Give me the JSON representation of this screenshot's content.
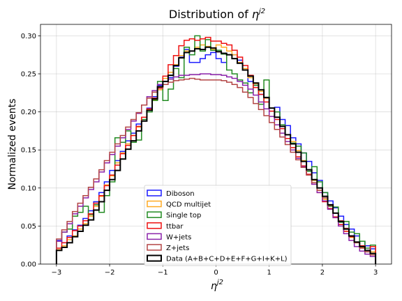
{
  "chart_data": {
    "type": "line",
    "title_text": "Distribution of ",
    "title_symbol": "η",
    "title_sup": "j2",
    "xlabel_symbol": "η",
    "xlabel_sup": "j2",
    "ylabel": "Normalized events",
    "xlim": [
      -3.3,
      3.3
    ],
    "ylim": [
      0.0,
      0.315
    ],
    "xticks": [
      -3,
      -2,
      -1,
      0,
      1,
      2,
      3
    ],
    "yticks": [
      0.0,
      0.05,
      0.1,
      0.15,
      0.2,
      0.25,
      0.3
    ],
    "ytick_labels": [
      "0.00",
      "0.05",
      "0.10",
      "0.15",
      "0.20",
      "0.25",
      "0.30"
    ],
    "grid": true,
    "legend_position": "lower center",
    "bin_edges_start": -3.0,
    "bin_width": 0.1,
    "series": [
      {
        "name": "Diboson",
        "color": "#1a1aff",
        "values": [
          0.031,
          0.028,
          0.037,
          0.045,
          0.051,
          0.06,
          0.07,
          0.082,
          0.094,
          0.108,
          0.123,
          0.136,
          0.148,
          0.162,
          0.172,
          0.184,
          0.193,
          0.205,
          0.22,
          0.235,
          0.24,
          0.245,
          0.26,
          0.272,
          0.282,
          0.265,
          0.265,
          0.27,
          0.275,
          0.278,
          0.27,
          0.265,
          0.275,
          0.275,
          0.268,
          0.255,
          0.24,
          0.235,
          0.223,
          0.218,
          0.205,
          0.206,
          0.19,
          0.182,
          0.166,
          0.158,
          0.146,
          0.135,
          0.12,
          0.11,
          0.094,
          0.083,
          0.074,
          0.063,
          0.052,
          0.046,
          0.037,
          0.03,
          0.024,
          0.02
        ]
      },
      {
        "name": "QCD multijet",
        "color": "#ffaa22",
        "values": [
          0.019,
          0.024,
          0.032,
          0.037,
          0.046,
          0.053,
          0.063,
          0.076,
          0.089,
          0.104,
          0.116,
          0.133,
          0.146,
          0.158,
          0.169,
          0.18,
          0.193,
          0.203,
          0.216,
          0.229,
          0.244,
          0.252,
          0.262,
          0.274,
          0.28,
          0.28,
          0.285,
          0.288,
          0.286,
          0.282,
          0.288,
          0.285,
          0.28,
          0.275,
          0.265,
          0.257,
          0.245,
          0.237,
          0.227,
          0.218,
          0.205,
          0.193,
          0.181,
          0.17,
          0.161,
          0.149,
          0.136,
          0.122,
          0.11,
          0.097,
          0.085,
          0.073,
          0.061,
          0.052,
          0.043,
          0.035,
          0.028,
          0.022,
          0.018,
          0.016
        ]
      },
      {
        "name": "Single top",
        "color": "#228b22",
        "values": [
          0.03,
          0.042,
          0.046,
          0.063,
          0.068,
          0.076,
          0.065,
          0.078,
          0.068,
          0.09,
          0.108,
          0.166,
          0.16,
          0.175,
          0.16,
          0.163,
          0.19,
          0.2,
          0.215,
          0.24,
          0.215,
          0.23,
          0.257,
          0.245,
          0.285,
          0.275,
          0.3,
          0.28,
          0.295,
          0.281,
          0.281,
          0.276,
          0.255,
          0.25,
          0.242,
          0.238,
          0.225,
          0.235,
          0.21,
          0.242,
          0.205,
          0.2,
          0.183,
          0.165,
          0.159,
          0.155,
          0.146,
          0.122,
          0.128,
          0.108,
          0.094,
          0.076,
          0.075,
          0.055,
          0.056,
          0.042,
          0.04,
          0.03,
          0.021,
          0.025
        ]
      },
      {
        "name": "ttbar",
        "color": "#ee1111",
        "values": [
          0.021,
          0.028,
          0.035,
          0.044,
          0.05,
          0.057,
          0.066,
          0.08,
          0.09,
          0.103,
          0.117,
          0.13,
          0.145,
          0.156,
          0.169,
          0.181,
          0.193,
          0.204,
          0.218,
          0.231,
          0.247,
          0.262,
          0.274,
          0.287,
          0.294,
          0.296,
          0.294,
          0.296,
          0.298,
          0.293,
          0.293,
          0.29,
          0.288,
          0.281,
          0.272,
          0.261,
          0.248,
          0.232,
          0.223,
          0.213,
          0.201,
          0.19,
          0.178,
          0.165,
          0.153,
          0.141,
          0.129,
          0.118,
          0.105,
          0.094,
          0.082,
          0.073,
          0.062,
          0.052,
          0.043,
          0.036,
          0.029,
          0.024,
          0.018,
          0.023
        ]
      },
      {
        "name": "W+jets",
        "color": "#8a22aa",
        "values": [
          0.03,
          0.042,
          0.053,
          0.066,
          0.076,
          0.087,
          0.098,
          0.108,
          0.121,
          0.133,
          0.144,
          0.155,
          0.166,
          0.177,
          0.188,
          0.198,
          0.209,
          0.22,
          0.228,
          0.236,
          0.24,
          0.243,
          0.246,
          0.248,
          0.248,
          0.249,
          0.249,
          0.25,
          0.25,
          0.249,
          0.249,
          0.248,
          0.246,
          0.244,
          0.24,
          0.235,
          0.23,
          0.222,
          0.213,
          0.204,
          0.194,
          0.183,
          0.172,
          0.161,
          0.15,
          0.139,
          0.128,
          0.117,
          0.105,
          0.094,
          0.083,
          0.072,
          0.061,
          0.05,
          0.04,
          0.031,
          0.023,
          0.017,
          0.013,
          0.01
        ]
      },
      {
        "name": "Z+jets",
        "color": "#b34545",
        "values": [
          0.033,
          0.045,
          0.056,
          0.069,
          0.08,
          0.09,
          0.101,
          0.112,
          0.124,
          0.136,
          0.147,
          0.158,
          0.169,
          0.18,
          0.19,
          0.199,
          0.209,
          0.218,
          0.226,
          0.232,
          0.236,
          0.239,
          0.241,
          0.242,
          0.243,
          0.244,
          0.243,
          0.242,
          0.242,
          0.242,
          0.242,
          0.241,
          0.239,
          0.236,
          0.232,
          0.226,
          0.219,
          0.211,
          0.203,
          0.195,
          0.186,
          0.177,
          0.167,
          0.157,
          0.147,
          0.137,
          0.127,
          0.117,
          0.107,
          0.097,
          0.087,
          0.077,
          0.067,
          0.057,
          0.047,
          0.037,
          0.028,
          0.021,
          0.016,
          0.012
        ]
      },
      {
        "name": "Data (A+B+C+D+E+F+G+I+K+L)",
        "color": "#000000",
        "bold": true,
        "values": [
          0.018,
          0.022,
          0.028,
          0.036,
          0.043,
          0.051,
          0.058,
          0.071,
          0.082,
          0.097,
          0.111,
          0.123,
          0.138,
          0.151,
          0.162,
          0.175,
          0.188,
          0.202,
          0.217,
          0.233,
          0.24,
          0.248,
          0.261,
          0.271,
          0.278,
          0.28,
          0.283,
          0.282,
          0.285,
          0.284,
          0.279,
          0.277,
          0.275,
          0.27,
          0.264,
          0.255,
          0.247,
          0.238,
          0.229,
          0.219,
          0.205,
          0.193,
          0.181,
          0.17,
          0.158,
          0.147,
          0.135,
          0.124,
          0.111,
          0.1,
          0.089,
          0.078,
          0.067,
          0.056,
          0.046,
          0.037,
          0.029,
          0.023,
          0.018,
          0.014
        ]
      }
    ]
  }
}
